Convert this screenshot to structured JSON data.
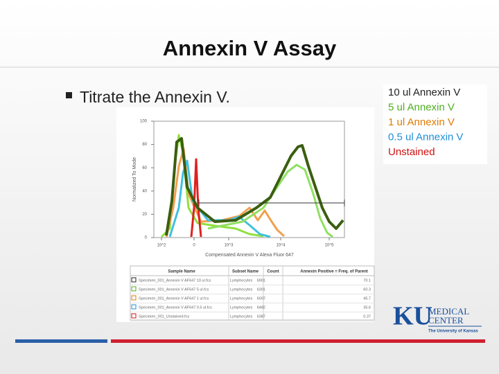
{
  "header": {
    "title": "Annexin V Assay"
  },
  "bullet": "Titrate the Annexin V.",
  "histogram": {
    "y_label": "Normalized To Mode",
    "x_label": "Compensated Annexin V Alexa Fluor 647",
    "y_ticks": [
      "0",
      "20",
      "40",
      "60",
      "80",
      "100"
    ],
    "x_ticks": [
      "10^2",
      "0",
      "10^3",
      "10^4",
      "10^5"
    ]
  },
  "table": {
    "columns": [
      "Sample Name",
      "Subset Name",
      "Count",
      "Annexin Positive = Freq. of Parent"
    ],
    "rows": [
      [
        "Specimen_001_Annexin V AF647 10 ul.fcs",
        "Lymphocytes",
        "6901",
        "70.1"
      ],
      [
        "Specimen_001_Annexin V AF647 5 ul.fcs",
        "Lymphocytes",
        "6301",
        "60.3"
      ],
      [
        "Specimen_001_Annexin V AF647 1 ul.fcs",
        "Lymphocytes",
        "6007",
        "45.7"
      ],
      [
        "Specimen_001_Annexin V AF647 0.5 ul.fcs",
        "Lymphocytes",
        "6482",
        "35.6"
      ],
      [
        "Specimen_001_Unstained.fcs",
        "Lymphocytes",
        "6387",
        "0.37"
      ]
    ]
  },
  "legend": [
    {
      "label": "10 ul Annexin V",
      "color": "#222222"
    },
    {
      "label": "5 ul Annexin V",
      "color": "#4caf1e"
    },
    {
      "label": "1 ul Annexin V",
      "color": "#e07b00"
    },
    {
      "label": "0.5 ul Annexin V",
      "color": "#1f8fd6"
    },
    {
      "label": "Unstained",
      "color": "#d01010"
    }
  ],
  "logo": {
    "mark": "KU",
    "line1": "MEDICAL",
    "line2": "CENTER",
    "line3": "The University of Kansas"
  }
}
